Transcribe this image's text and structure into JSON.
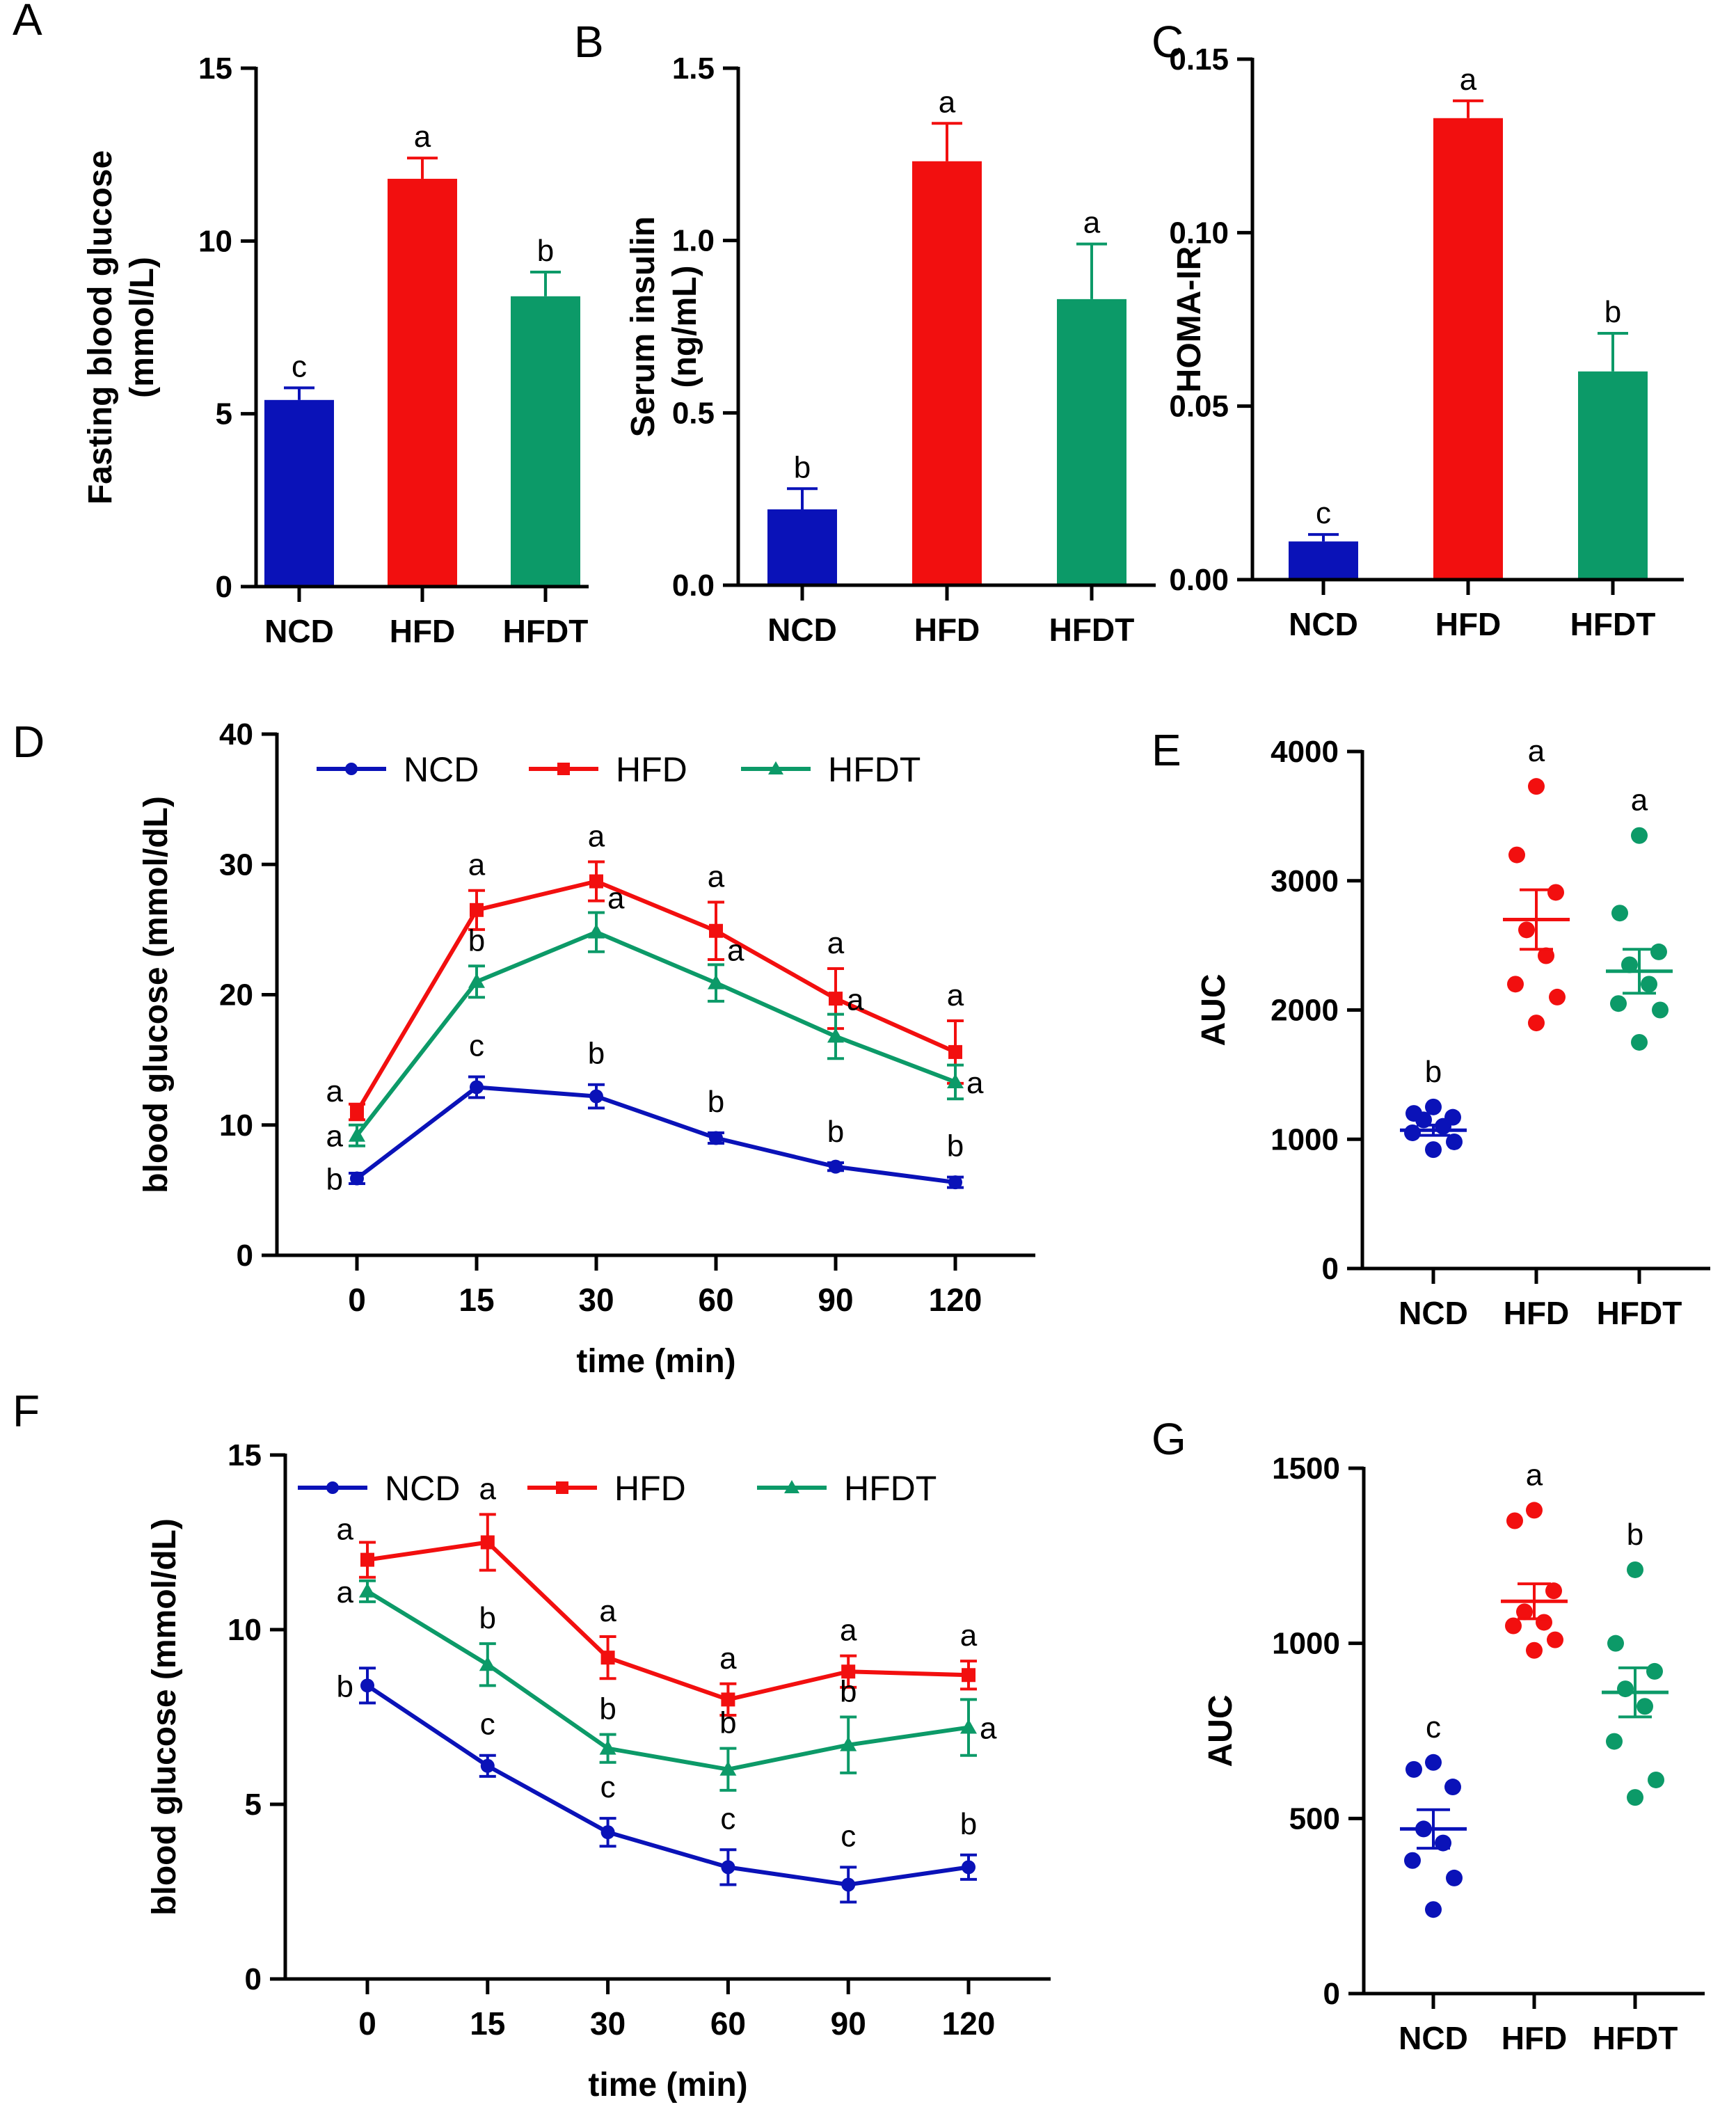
{
  "colors": {
    "NCD": "#0a12b8",
    "HFD": "#f20f0f",
    "HFDT": "#0c9a68"
  },
  "chart_data": [
    {
      "panel": "A",
      "type": "bar",
      "ylabel_lines": [
        "Fasting blood glucose",
        "(mmol/L)"
      ],
      "categories": [
        "NCD",
        "HFD",
        "HFDT"
      ],
      "values": [
        5.4,
        11.8,
        8.4
      ],
      "errors": [
        0.35,
        0.6,
        0.7
      ],
      "letters": [
        "c",
        "a",
        "b"
      ],
      "ylim": [
        0,
        15
      ],
      "yticks": [
        0,
        5,
        10,
        15
      ],
      "ytick_labels": [
        "0",
        "5",
        "10",
        "15"
      ]
    },
    {
      "panel": "B",
      "type": "bar",
      "ylabel_lines": [
        "Serum insulin",
        "(ng/mL)"
      ],
      "categories": [
        "NCD",
        "HFD",
        "HFDT"
      ],
      "values": [
        0.22,
        1.23,
        0.83
      ],
      "errors": [
        0.06,
        0.11,
        0.16
      ],
      "letters": [
        "b",
        "a",
        "a"
      ],
      "ylim": [
        0,
        1.5
      ],
      "yticks": [
        0,
        0.5,
        1.0,
        1.5
      ],
      "ytick_labels": [
        "0.0",
        "0.5",
        "1.0",
        "1.5"
      ]
    },
    {
      "panel": "C",
      "type": "bar",
      "ylabel_lines": [
        "HOMA-IR"
      ],
      "categories": [
        "NCD",
        "HFD",
        "HFDT"
      ],
      "values": [
        0.011,
        0.133,
        0.06
      ],
      "errors": [
        0.002,
        0.005,
        0.011
      ],
      "letters": [
        "c",
        "a",
        "b"
      ],
      "ylim": [
        0,
        0.15
      ],
      "yticks": [
        0,
        0.05,
        0.1,
        0.15
      ],
      "ytick_labels": [
        "0.00",
        "0.05",
        "0.10",
        "0.15"
      ]
    },
    {
      "panel": "D",
      "type": "line",
      "ylabel": "blood glucose (mmol/dL)",
      "xlabel": "time (min)",
      "x": [
        "0",
        "15",
        "30",
        "60",
        "90",
        "120"
      ],
      "ylim": [
        0,
        40
      ],
      "yticks": [
        0,
        10,
        20,
        30,
        40
      ],
      "ytick_labels": [
        "0",
        "10",
        "20",
        "30",
        "40"
      ],
      "legend": [
        "NCD",
        "HFD",
        "HFDT"
      ],
      "series": [
        {
          "name": "NCD",
          "values": [
            5.9,
            12.9,
            12.2,
            9.0,
            6.8,
            5.6
          ],
          "errors": [
            0.4,
            0.8,
            0.9,
            0.4,
            0.3,
            0.4
          ],
          "letters": [
            "b",
            "c",
            "b",
            "b",
            "b",
            "b"
          ]
        },
        {
          "name": "HFD",
          "values": [
            11.0,
            26.5,
            28.7,
            24.9,
            19.7,
            15.6
          ],
          "errors": [
            0.6,
            1.5,
            1.5,
            2.2,
            2.3,
            2.4
          ],
          "letters": [
            "a",
            "a",
            "a",
            "a",
            "a",
            "a"
          ]
        },
        {
          "name": "HFDT",
          "values": [
            9.2,
            21.0,
            24.8,
            20.9,
            16.8,
            13.3
          ],
          "errors": [
            0.8,
            1.2,
            1.5,
            1.4,
            1.7,
            1.3
          ],
          "letters": [
            "a",
            "b",
            "a",
            "a",
            "a",
            "a"
          ]
        }
      ]
    },
    {
      "panel": "E",
      "type": "scatter",
      "ylabel": "AUC",
      "categories": [
        "NCD",
        "HFD",
        "HFDT"
      ],
      "ylim": [
        0,
        4000
      ],
      "yticks": [
        0,
        1000,
        2000,
        3000,
        4000
      ],
      "ytick_labels": [
        "0",
        "1000",
        "2000",
        "3000",
        "4000"
      ],
      "points": [
        [
          1050,
          1200,
          1250,
          920,
          1100,
          1150,
          980,
          1170
        ],
        [
          3730,
          3200,
          2910,
          2620,
          2420,
          2200,
          2100,
          1900
        ],
        [
          3350,
          2750,
          2450,
          2350,
          2200,
          2050,
          2000,
          1750
        ]
      ],
      "means": [
        1070,
        2700,
        2300
      ],
      "sems": [
        40,
        230,
        170
      ],
      "letters": [
        "b",
        "a",
        "a"
      ]
    },
    {
      "panel": "F",
      "type": "line",
      "ylabel": "blood glucose (mmol/dL)",
      "xlabel": "time (min)",
      "x": [
        "0",
        "15",
        "30",
        "60",
        "90",
        "120"
      ],
      "ylim": [
        0,
        15
      ],
      "yticks": [
        0,
        5,
        10,
        15
      ],
      "ytick_labels": [
        "0",
        "5",
        "10",
        "15"
      ],
      "legend": [
        "NCD",
        "HFD",
        "HFDT"
      ],
      "series": [
        {
          "name": "NCD",
          "values": [
            8.4,
            6.1,
            4.2,
            3.2,
            2.7,
            3.2
          ],
          "errors": [
            0.5,
            0.3,
            0.4,
            0.5,
            0.5,
            0.35
          ],
          "letters": [
            "b",
            "c",
            "c",
            "c",
            "c",
            "b"
          ]
        },
        {
          "name": "HFD",
          "values": [
            12.0,
            12.5,
            9.2,
            8.0,
            8.8,
            8.7
          ],
          "errors": [
            0.5,
            0.8,
            0.6,
            0.45,
            0.45,
            0.4
          ],
          "letters": [
            "a",
            "a",
            "a",
            "a",
            "a",
            "a"
          ]
        },
        {
          "name": "HFDT",
          "values": [
            11.1,
            9.0,
            6.6,
            6.0,
            6.7,
            7.2
          ],
          "errors": [
            0.3,
            0.6,
            0.4,
            0.6,
            0.8,
            0.8
          ],
          "letters": [
            "a",
            "b",
            "b",
            "b",
            "b",
            "a"
          ]
        }
      ]
    },
    {
      "panel": "G",
      "type": "scatter",
      "ylabel": "AUC",
      "categories": [
        "NCD",
        "HFD",
        "HFDT"
      ],
      "ylim": [
        0,
        1500
      ],
      "yticks": [
        0,
        500,
        1000,
        1500
      ],
      "ytick_labels": [
        "0",
        "500",
        "1000",
        "1500"
      ],
      "points": [
        [
          660,
          640,
          590,
          470,
          430,
          380,
          330,
          240
        ],
        [
          1380,
          1350,
          1150,
          1090,
          1060,
          1050,
          1010,
          980
        ],
        [
          1210,
          1000,
          920,
          870,
          820,
          720,
          610,
          560
        ]
      ],
      "means": [
        470,
        1120,
        860
      ],
      "sems": [
        55,
        50,
        70
      ],
      "letters": [
        "c",
        "a",
        "b"
      ]
    }
  ]
}
